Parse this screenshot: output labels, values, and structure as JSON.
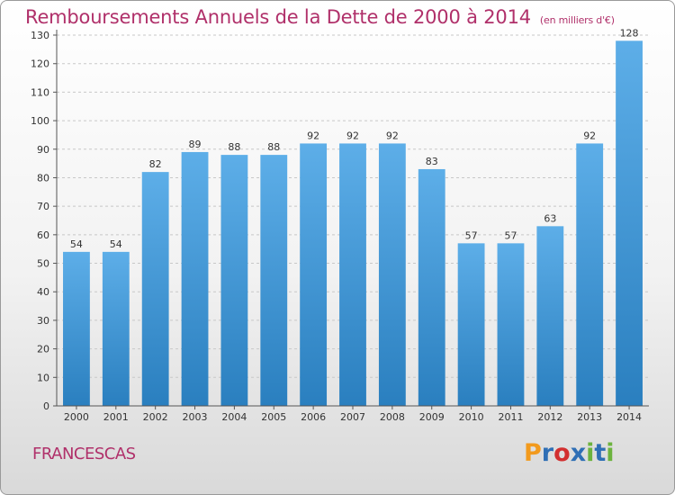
{
  "header": {
    "title": "Remboursements Annuels de la Dette de 2000 à 2014",
    "unit": "(en milliers d'€)"
  },
  "footer": {
    "commune": "FRANCESCAS",
    "logo_text": "Proxiti"
  },
  "colors": {
    "title": "#b0306a",
    "bar_top": "#5daee8",
    "bar_bottom": "#2a7fbf",
    "grid": "#c8c8c8",
    "axis": "#555555",
    "logo_letters": [
      "#f29a1d",
      "#2f6fb5",
      "#d22f2f",
      "#2f6fb5",
      "#6cb33e",
      "#2f6fb5",
      "#6cb33e"
    ]
  },
  "chart_data": {
    "type": "bar",
    "title": "Remboursements Annuels de la Dette de 2000 à 2014",
    "subtitle": "(en milliers d'€)",
    "xlabel": "",
    "ylabel": "",
    "categories": [
      "2000",
      "2001",
      "2002",
      "2003",
      "2004",
      "2005",
      "2006",
      "2007",
      "2008",
      "2009",
      "2010",
      "2011",
      "2012",
      "2013",
      "2014"
    ],
    "values": [
      54,
      54,
      82,
      89,
      88,
      88,
      92,
      92,
      92,
      83,
      57,
      57,
      63,
      92,
      128
    ],
    "ylim": [
      0,
      130
    ],
    "yticks": [
      0,
      10,
      20,
      30,
      40,
      50,
      60,
      70,
      80,
      90,
      100,
      110,
      120,
      130
    ],
    "grid": true,
    "data_labels": true
  }
}
